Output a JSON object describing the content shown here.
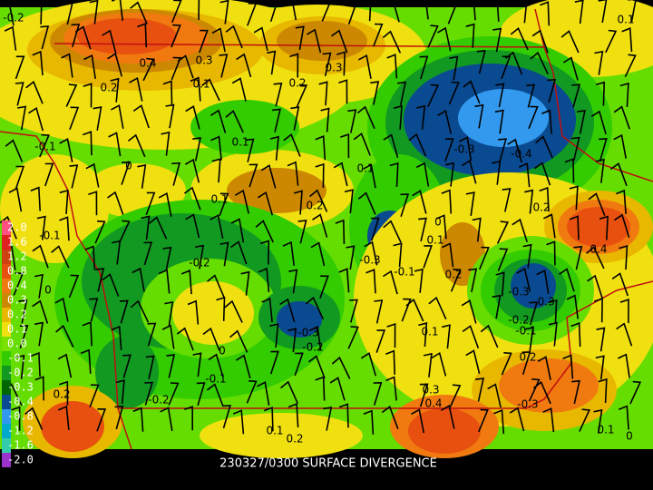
{
  "caption": "230327/0300 SURFACE DIVERGENCE",
  "colorbar": {
    "labels": [
      "2.0",
      "1.6",
      "1.2",
      "0.8",
      "0.4",
      "0.3",
      "0.2",
      "0.1",
      "0.0",
      "-0.1",
      "-0.2",
      "-0.3",
      "-0.4",
      "-0.8",
      "-1.2",
      "-1.6",
      "-2.0"
    ],
    "colors": [
      "#ff5080",
      "#e02020",
      "#d04010",
      "#e85010",
      "#f07a10",
      "#cc8800",
      "#e8b800",
      "#f0e010",
      "#7ae000",
      "#33cc00",
      "#119922",
      "#006600",
      "#0a4a90",
      "#3399ee",
      "#00aacc",
      "#33ccaa",
      "#9933cc"
    ]
  },
  "contour_labels": [
    "-0.2",
    "0.3",
    "0.4",
    "0.2",
    "0.1",
    "0.3",
    "0.2",
    "0.1",
    "0.1",
    "-0.3",
    "-0.4",
    "0.1",
    "0",
    "0.1",
    "0.2",
    "0.2",
    "0",
    "0.4",
    "0.1",
    "-0.1",
    "-0.2",
    "-0.3",
    "-0.1",
    "0.2",
    "-0.3",
    "-0.3",
    "-0.3",
    "-0.2",
    "-0.2",
    "-0.1",
    "0.1",
    "0",
    "-0.1",
    "0.2",
    "0.3",
    "0.4",
    "-0.2",
    "0.2",
    "-0.3",
    "0.1",
    "0.2",
    "0.1",
    "0",
    "0",
    "-0.1"
  ]
}
